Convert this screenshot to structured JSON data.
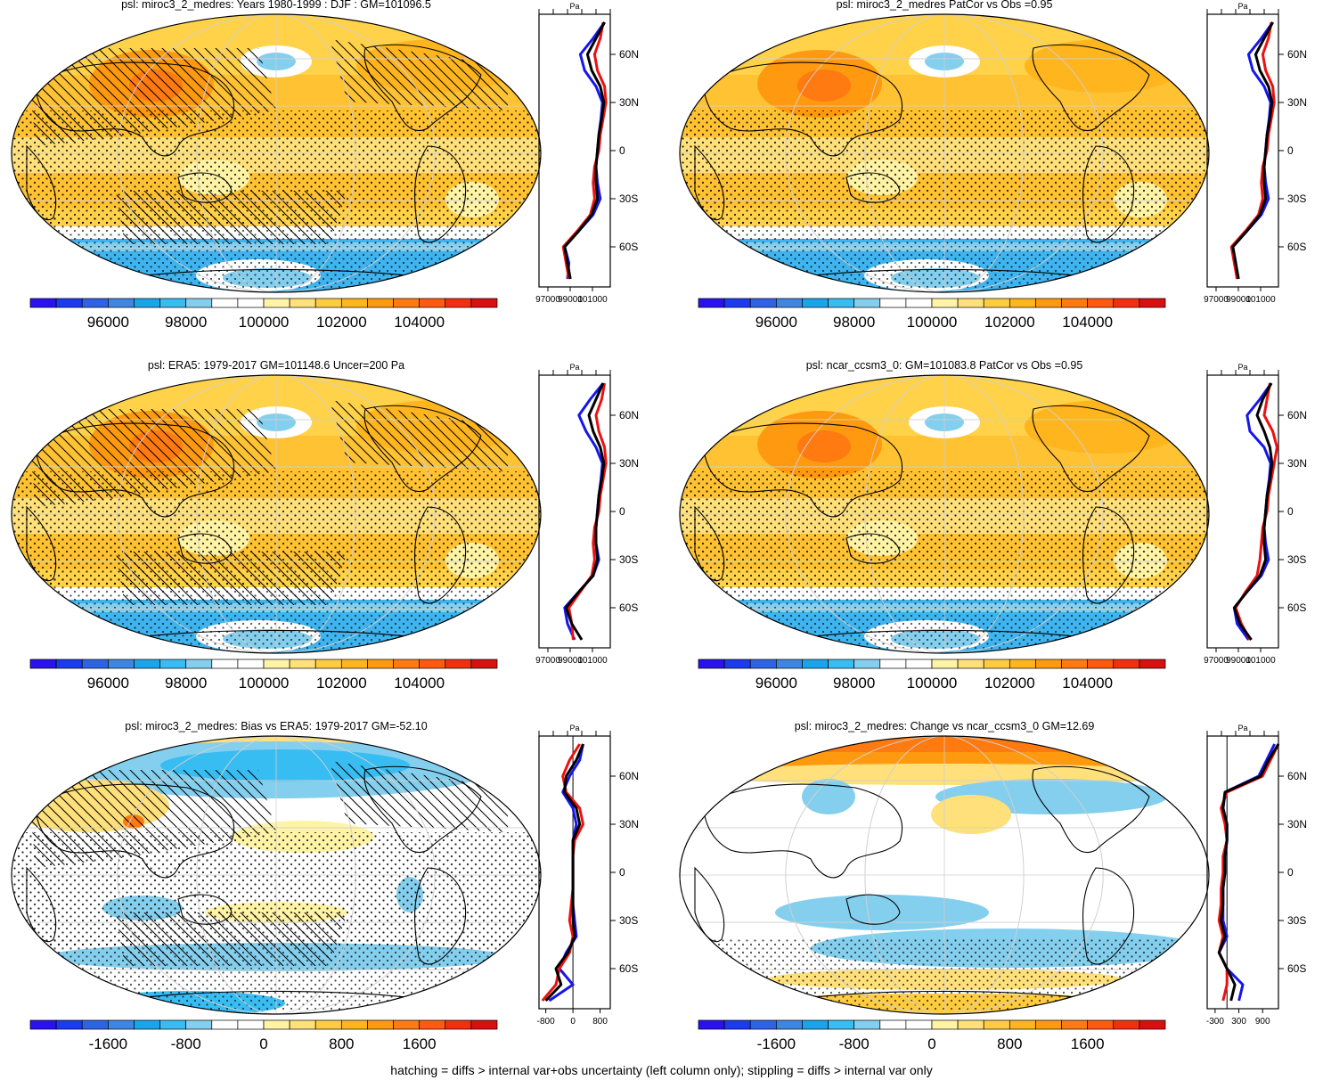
{
  "footer": "hatching = diffs > internal var+obs uncertainty (left column only); stippling = diffs > internal var only",
  "colors": {
    "mean": [
      "#2a12ee",
      "#1a3bee",
      "#2f63e6",
      "#3f86e2",
      "#1aa5ea",
      "#38bdf2",
      "#84cfee",
      "#ffffff",
      "#ffffff",
      "#fff3a6",
      "#ffe07a",
      "#ffcc40",
      "#ffb51e",
      "#ff9a10",
      "#ff7a10",
      "#ff5a10",
      "#f23010",
      "#d81010"
    ],
    "diff": [
      "#2a12ee",
      "#1a3bee",
      "#2f63e6",
      "#3f86e2",
      "#1aa5ea",
      "#38bdf2",
      "#84cfee",
      "#ffffff",
      "#ffffff",
      "#fff3a6",
      "#ffe07a",
      "#ffcc40",
      "#ffb51e",
      "#ff9a10",
      "#ff7a10",
      "#ff5a10",
      "#f23010",
      "#d81010"
    ],
    "profile": {
      "blue": "#1515ee",
      "red": "#ee1010",
      "black": "#000000"
    }
  },
  "chart_data": [
    {
      "type": "heatmap",
      "id": "p1",
      "title": "psl: miroc3_2_medres: Years 1980-1999 : DJF : GM=101096.5",
      "colorbar": {
        "labels": [
          "96000",
          "98000",
          "100000",
          "102000",
          "104000"
        ]
      },
      "profile": {
        "xlabels": [
          "97000",
          "99000",
          "101000"
        ],
        "xlim": [
          97000,
          102000
        ],
        "unit": "Pa",
        "lat": [
          -80,
          -70,
          -60,
          -50,
          -40,
          -30,
          -20,
          -10,
          0,
          10,
          20,
          30,
          40,
          50,
          60,
          70,
          80
        ],
        "blue": [
          99000,
          99100,
          98800,
          99800,
          100800,
          101300,
          101100,
          101000,
          101100,
          101200,
          101350,
          101450,
          101000,
          100200,
          99900,
          100800,
          101600
        ],
        "red": [
          99100,
          98900,
          98700,
          99700,
          100600,
          100900,
          100800,
          100900,
          101200,
          101300,
          101500,
          101700,
          101600,
          101100,
          100900,
          101300,
          101500
        ],
        "black": [
          99200,
          99000,
          98800,
          99800,
          100700,
          101100,
          101000,
          101000,
          101100,
          101200,
          101400,
          101550,
          101300,
          100700,
          100400,
          101000,
          101600
        ]
      }
    },
    {
      "type": "heatmap",
      "id": "p2",
      "title": "psl: miroc3_2_medres PatCor vs Obs =0.95",
      "colorbar": {
        "labels": [
          "96000",
          "98000",
          "100000",
          "102000",
          "104000"
        ]
      },
      "profile": {
        "xlabels": [
          "97000",
          "99000",
          "101000"
        ],
        "xlim": [
          97000,
          102000
        ],
        "unit": "Pa",
        "lat": [
          -80,
          -70,
          -60,
          -50,
          -40,
          -30,
          -20,
          -10,
          0,
          10,
          20,
          30,
          40,
          50,
          60,
          70,
          80
        ],
        "blue": [
          99100,
          99000,
          98800,
          99800,
          100800,
          101300,
          101100,
          101000,
          101100,
          101200,
          101350,
          101450,
          101000,
          100200,
          99900,
          100800,
          101600
        ],
        "red": [
          99100,
          98900,
          98700,
          99700,
          100600,
          100900,
          100800,
          100900,
          101200,
          101300,
          101500,
          101700,
          101600,
          101100,
          100900,
          101300,
          101500
        ],
        "black": [
          99200,
          99000,
          98800,
          99800,
          100700,
          101100,
          101000,
          101000,
          101100,
          101200,
          101400,
          101550,
          101300,
          100700,
          100400,
          101000,
          101600
        ]
      }
    },
    {
      "type": "heatmap",
      "id": "p3",
      "title": "psl: ERA5: 1979-2017 GM=101148.6 Uncer=200 Pa",
      "colorbar": {
        "labels": [
          "96000",
          "98000",
          "100000",
          "102000",
          "104000"
        ]
      },
      "profile": {
        "xlabels": [
          "97000",
          "99000",
          "101000"
        ],
        "xlim": [
          97000,
          102000
        ],
        "unit": "Pa",
        "lat": [
          -80,
          -70,
          -60,
          -50,
          -40,
          -30,
          -20,
          -10,
          0,
          10,
          20,
          30,
          40,
          50,
          60,
          70,
          80
        ],
        "blue": [
          99500,
          99000,
          98800,
          99800,
          100800,
          101200,
          101000,
          101000,
          101100,
          101200,
          101350,
          101450,
          101000,
          100300,
          99800,
          100600,
          101500
        ],
        "red": [
          99400,
          99300,
          99100,
          99900,
          100700,
          100900,
          100800,
          100900,
          101200,
          101300,
          101500,
          101700,
          101600,
          101200,
          101000,
          101400,
          101600
        ],
        "black": [
          100000,
          99300,
          98900,
          99800,
          100800,
          101100,
          101000,
          101000,
          101100,
          101200,
          101400,
          101550,
          101300,
          100800,
          100500,
          101000,
          101500
        ]
      }
    },
    {
      "type": "heatmap",
      "id": "p4",
      "title": "psl: ncar_ccsm3_0: GM=101083.8 PatCor vs Obs =0.95",
      "colorbar": {
        "labels": [
          "96000",
          "98000",
          "100000",
          "102000",
          "104000"
        ]
      },
      "profile": {
        "xlabels": [
          "97000",
          "99000",
          "101000"
        ],
        "xlim": [
          97000,
          102000
        ],
        "unit": "Pa",
        "lat": [
          -80,
          -70,
          -60,
          -50,
          -40,
          -30,
          -20,
          -10,
          0,
          10,
          20,
          30,
          40,
          50,
          60,
          70,
          80
        ],
        "blue": [
          99900,
          99100,
          98900,
          99800,
          100800,
          101300,
          101100,
          101000,
          101100,
          101200,
          101350,
          101450,
          101000,
          100000,
          99800,
          100700,
          101500
        ],
        "red": [
          100000,
          99400,
          99000,
          99700,
          100500,
          100700,
          100800,
          100900,
          101200,
          101300,
          101500,
          101700,
          101900,
          101600,
          101000,
          101200,
          101400
        ],
        "black": [
          100100,
          99300,
          98900,
          99800,
          100700,
          101100,
          101000,
          101000,
          101100,
          101200,
          101400,
          101550,
          101400,
          101000,
          100500,
          100900,
          101500
        ]
      }
    },
    {
      "type": "heatmap",
      "id": "p5",
      "title": "psl: miroc3_2_medres: Bias vs ERA5: 1979-2017 GM=-52.10",
      "colorbar": {
        "labels": [
          "-1600",
          "-800",
          "0",
          "800",
          "1600"
        ]
      },
      "profile": {
        "xlabels": [
          "-800",
          "0",
          "800"
        ],
        "xlim": [
          -1000,
          1100
        ],
        "unit": "Pa",
        "lat": [
          -80,
          -70,
          -60,
          -50,
          -40,
          -30,
          -20,
          -10,
          0,
          10,
          20,
          30,
          40,
          50,
          60,
          70,
          80
        ],
        "blue": [
          -700,
          0,
          -400,
          -200,
          100,
          50,
          0,
          0,
          0,
          0,
          0,
          100,
          0,
          -300,
          -100,
          200,
          300
        ],
        "red": [
          -900,
          -500,
          -400,
          -100,
          0,
          -100,
          -50,
          0,
          0,
          0,
          50,
          300,
          200,
          -200,
          -300,
          -100,
          200
        ],
        "black": [
          -800,
          -350,
          -500,
          -150,
          50,
          0,
          0,
          0,
          0,
          0,
          0,
          200,
          100,
          -250,
          -200,
          100,
          300
        ]
      }
    },
    {
      "type": "heatmap",
      "id": "p6",
      "title": "psl: miroc3_2_medres: Change vs ncar_ccsm3_0 GM=12.69",
      "colorbar": {
        "labels": [
          "-1600",
          "-800",
          "0",
          "800",
          "1600"
        ]
      },
      "profile": {
        "xlabels": [
          "-300",
          "300",
          "900"
        ],
        "xlim": [
          -500,
          1300
        ],
        "unit": "Pa",
        "lat": [
          -80,
          -70,
          -60,
          -50,
          -40,
          -30,
          -20,
          -10,
          0,
          10,
          20,
          30,
          40,
          50,
          60,
          70,
          80
        ],
        "blue": [
          300,
          400,
          0,
          -200,
          0,
          -100,
          -100,
          -100,
          -50,
          -50,
          0,
          0,
          -100,
          -50,
          800,
          1000,
          1200
        ],
        "red": [
          -100,
          0,
          0,
          -200,
          -100,
          -200,
          -150,
          -150,
          -100,
          -100,
          0,
          -50,
          -150,
          0,
          900,
          1100,
          1300
        ],
        "black": [
          100,
          200,
          0,
          -200,
          -50,
          -150,
          -100,
          -100,
          -50,
          -50,
          0,
          0,
          -100,
          -50,
          850,
          1050,
          1300
        ]
      }
    }
  ]
}
